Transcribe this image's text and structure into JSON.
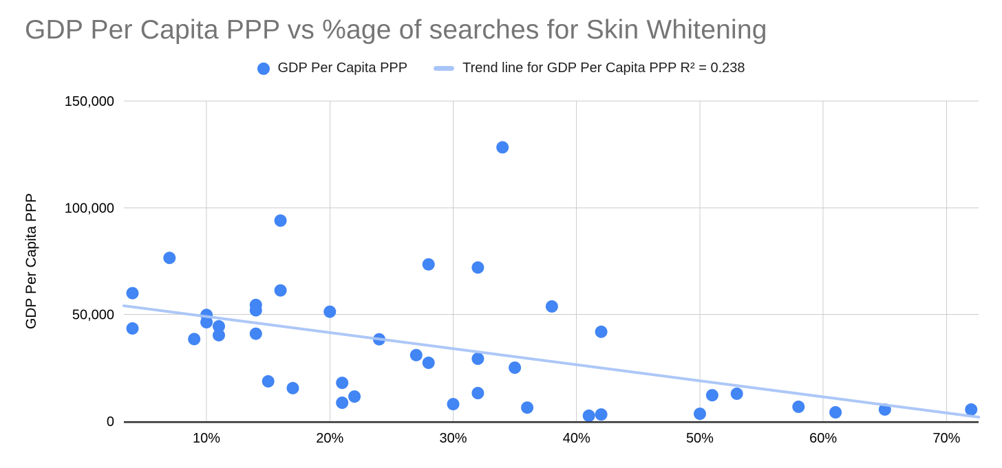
{
  "colors": {
    "point": "#4285F4",
    "trendline": "#A9C5F7",
    "gridline": "#CCCCCC",
    "axis": "#333333",
    "title": "#757575",
    "text": "#000000",
    "legend_text": "#1F1F1F",
    "background": "#FFFFFF"
  },
  "chart_data": {
    "type": "scatter",
    "title": "GDP Per Capita PPP vs %age of searches for Skin Whitening",
    "xlabel": "",
    "ylabel": "GDP Per Capita PPP",
    "legend": [
      "GDP Per Capita PPP",
      "Trend line for GDP Per Capita PPP R² = 0.238"
    ],
    "legend_position": "top",
    "grid": true,
    "x_domain": [
      3.3,
      72.6
    ],
    "y_domain": [
      0,
      150000
    ],
    "x_ticks": [
      {
        "value": 10,
        "label": "10%"
      },
      {
        "value": 20,
        "label": "20%"
      },
      {
        "value": 30,
        "label": "30%"
      },
      {
        "value": 40,
        "label": "40%"
      },
      {
        "value": 50,
        "label": "50%"
      },
      {
        "value": 60,
        "label": "60%"
      },
      {
        "value": 70,
        "label": "70%"
      }
    ],
    "y_ticks": [
      {
        "value": 0,
        "label": "0"
      },
      {
        "value": 50000,
        "label": "50,000"
      },
      {
        "value": 100000,
        "label": "100,000"
      },
      {
        "value": 150000,
        "label": "150,000"
      }
    ],
    "series": [
      {
        "name": "GDP Per Capita PPP",
        "points": [
          {
            "x": 4,
            "y": 60000
          },
          {
            "x": 4,
            "y": 43500
          },
          {
            "x": 7,
            "y": 76500
          },
          {
            "x": 9,
            "y": 38500
          },
          {
            "x": 10,
            "y": 49800
          },
          {
            "x": 10,
            "y": 46400
          },
          {
            "x": 11,
            "y": 44500
          },
          {
            "x": 11,
            "y": 40300
          },
          {
            "x": 14,
            "y": 54500
          },
          {
            "x": 14,
            "y": 52000
          },
          {
            "x": 14,
            "y": 41000
          },
          {
            "x": 15,
            "y": 18700
          },
          {
            "x": 16,
            "y": 94000
          },
          {
            "x": 16,
            "y": 61300
          },
          {
            "x": 17,
            "y": 15500
          },
          {
            "x": 20,
            "y": 51300
          },
          {
            "x": 21,
            "y": 18000
          },
          {
            "x": 21,
            "y": 8700
          },
          {
            "x": 22,
            "y": 11600
          },
          {
            "x": 24,
            "y": 38400
          },
          {
            "x": 27,
            "y": 31000
          },
          {
            "x": 28,
            "y": 73500
          },
          {
            "x": 28,
            "y": 27400
          },
          {
            "x": 30,
            "y": 8000
          },
          {
            "x": 32,
            "y": 72000
          },
          {
            "x": 32,
            "y": 29300
          },
          {
            "x": 32,
            "y": 13200
          },
          {
            "x": 34,
            "y": 128300
          },
          {
            "x": 35,
            "y": 25100
          },
          {
            "x": 36,
            "y": 6400
          },
          {
            "x": 38,
            "y": 53800
          },
          {
            "x": 41,
            "y": 2600
          },
          {
            "x": 42,
            "y": 41900
          },
          {
            "x": 42,
            "y": 3200
          },
          {
            "x": 50,
            "y": 3500
          },
          {
            "x": 51,
            "y": 12200
          },
          {
            "x": 53,
            "y": 12900
          },
          {
            "x": 58,
            "y": 6800
          },
          {
            "x": 61,
            "y": 4200
          },
          {
            "x": 65,
            "y": 5500
          },
          {
            "x": 72,
            "y": 5500
          }
        ]
      }
    ],
    "trendline": {
      "for_series": "GDP Per Capita PPP",
      "r_squared": 0.238,
      "start": {
        "x": 3.3,
        "y": 54100
      },
      "end": {
        "x": 72.6,
        "y": 1950
      }
    }
  }
}
